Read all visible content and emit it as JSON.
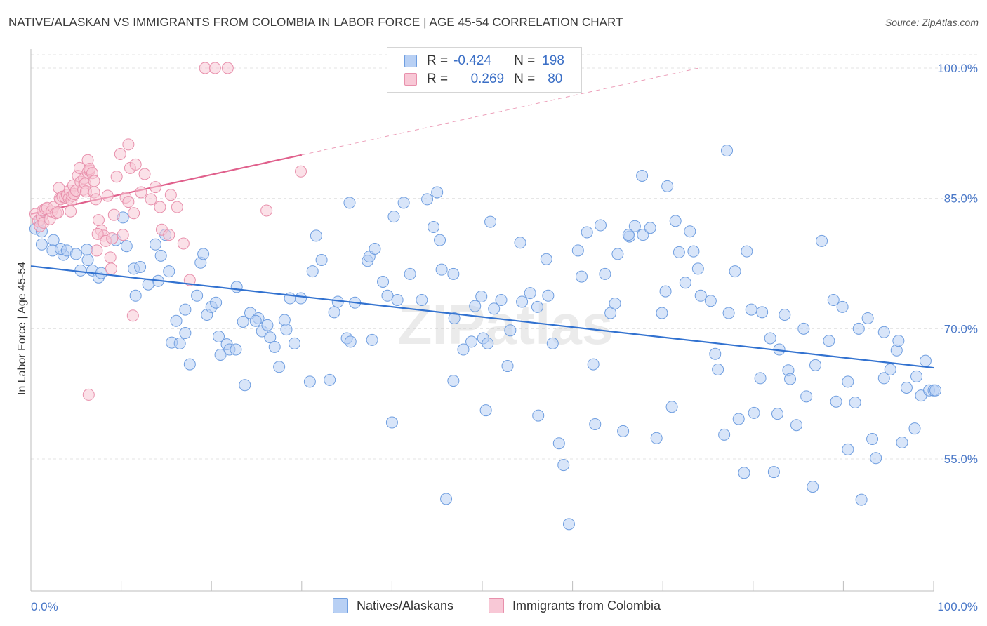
{
  "header": {
    "title": "NATIVE/ALASKAN VS IMMIGRANTS FROM COLOMBIA IN LABOR FORCE | AGE 45-54 CORRELATION CHART",
    "source": "Source: ZipAtlas.com"
  },
  "legend": {
    "r_label": "R =",
    "n_label": "N =",
    "series": [
      {
        "r": "-0.424",
        "n": "198"
      },
      {
        "r": "0.269",
        "n": "80"
      }
    ]
  },
  "bottom_legend": [
    "Natives/Alaskans",
    "Immigrants from Colombia"
  ],
  "watermark": "ZIPatlas",
  "colors": {
    "blue_fill": "#b8d0f4",
    "blue_stroke": "#6f9ee0",
    "blue_line": "#3272d0",
    "pink_fill": "#f8c8d6",
    "pink_stroke": "#e890ac",
    "pink_line": "#e0608c",
    "tick_text": "#4a78c8",
    "grid": "#e3e3e3"
  },
  "chart_data": {
    "type": "scatter",
    "title": "NATIVE/ALASKAN VS IMMIGRANTS FROM COLOMBIA IN LABOR FORCE | AGE 45-54 CORRELATION CHART",
    "xlabel": "",
    "ylabel": "In Labor Force | Age 45-54",
    "xlim": [
      0,
      100
    ],
    "ylim": [
      40,
      102
    ],
    "x_tick_labels": [
      "0.0%",
      "100.0%"
    ],
    "y_ticks": [
      55,
      70,
      85,
      100
    ],
    "y_tick_labels": [
      "55.0%",
      "70.0%",
      "85.0%",
      "100.0%"
    ],
    "grid": true,
    "legend_position": "top-center",
    "series": [
      {
        "name": "Natives/Alaskans",
        "r": -0.424,
        "n": 198,
        "trend": {
          "x": [
            0,
            100
          ],
          "y": [
            77.2,
            65.5
          ],
          "style": "solid"
        },
        "points": [
          [
            0.5,
            81.5
          ],
          [
            1.2,
            81.2
          ],
          [
            1,
            82.5
          ],
          [
            2.5,
            80.2
          ],
          [
            1.2,
            79.7
          ],
          [
            2.4,
            79
          ],
          [
            3.6,
            78.5
          ],
          [
            3.3,
            79.2
          ],
          [
            4,
            79
          ],
          [
            5,
            78.6
          ],
          [
            6.3,
            77.9
          ],
          [
            6.2,
            79.1
          ],
          [
            5.5,
            76.7
          ],
          [
            6.8,
            76.7
          ],
          [
            7.5,
            75.9
          ],
          [
            7.8,
            76.4
          ],
          [
            10.2,
            82.8
          ],
          [
            9.4,
            80.2
          ],
          [
            11.4,
            76.9
          ],
          [
            10.6,
            79.5
          ],
          [
            12.1,
            77.1
          ],
          [
            11.6,
            73.8
          ],
          [
            14.1,
            75.5
          ],
          [
            13,
            75.1
          ],
          [
            14.4,
            78.4
          ],
          [
            14.9,
            80.8
          ],
          [
            13.8,
            79.7
          ],
          [
            15.3,
            76.6
          ],
          [
            16.1,
            70.9
          ],
          [
            17.1,
            72.2
          ],
          [
            17.6,
            65.9
          ],
          [
            15.6,
            68.4
          ],
          [
            16.5,
            68.3
          ],
          [
            17.1,
            69.5
          ],
          [
            18.8,
            77.6
          ],
          [
            19.1,
            78.6
          ],
          [
            18.4,
            73.8
          ],
          [
            19.5,
            71.6
          ],
          [
            20,
            72.5
          ],
          [
            20.5,
            73
          ],
          [
            21,
            67.0
          ],
          [
            20.8,
            69.1
          ],
          [
            21.7,
            68.2
          ],
          [
            22.0,
            67.6
          ],
          [
            22.7,
            67.6
          ],
          [
            23.5,
            70.8
          ],
          [
            22.8,
            74.8
          ],
          [
            23.7,
            63.5
          ],
          [
            24.3,
            71.8
          ],
          [
            25.2,
            71.2
          ],
          [
            24.9,
            70.9
          ],
          [
            25.6,
            69.7
          ],
          [
            26.2,
            70.4
          ],
          [
            26.5,
            69.0
          ],
          [
            27.0,
            67.9
          ],
          [
            27.5,
            65.6
          ],
          [
            28.1,
            71.0
          ],
          [
            28.3,
            69.9
          ],
          [
            29.2,
            68.3
          ],
          [
            28.7,
            73.5
          ],
          [
            29.9,
            73.5
          ],
          [
            30.9,
            63.9
          ],
          [
            31.6,
            80.7
          ],
          [
            32.2,
            77.9
          ],
          [
            31.2,
            76.6
          ],
          [
            33.1,
            64.1
          ],
          [
            33.6,
            71.9
          ],
          [
            34.0,
            73.1
          ],
          [
            35.0,
            68.9
          ],
          [
            35.4,
            68.5
          ],
          [
            35.3,
            84.5
          ],
          [
            35.9,
            73
          ],
          [
            37.3,
            77.8
          ],
          [
            37.5,
            78.3
          ],
          [
            38.1,
            79.2
          ],
          [
            37.8,
            68.7
          ],
          [
            39.0,
            75.4
          ],
          [
            39.5,
            73.8
          ],
          [
            40.2,
            82.9
          ],
          [
            40.0,
            59.2
          ],
          [
            40.6,
            73.3
          ],
          [
            41.3,
            84.5
          ],
          [
            42.0,
            76.3
          ],
          [
            43.3,
            73.3
          ],
          [
            43.9,
            84.9
          ],
          [
            44.6,
            81.7
          ],
          [
            45.0,
            85.7
          ],
          [
            45.3,
            80.2
          ],
          [
            45.5,
            76.8
          ],
          [
            46.0,
            50.4
          ],
          [
            46.8,
            76.3
          ],
          [
            46.8,
            64.0
          ],
          [
            46.9,
            71.2
          ],
          [
            47.9,
            67.6
          ],
          [
            48.8,
            68.5
          ],
          [
            49.2,
            72.6
          ],
          [
            49.9,
            73.7
          ],
          [
            50.1,
            68.9
          ],
          [
            50.4,
            60.6
          ],
          [
            50.9,
            82.3
          ],
          [
            50.6,
            68.3
          ],
          [
            51.3,
            72.3
          ],
          [
            52.1,
            73.3
          ],
          [
            52.8,
            65.7
          ],
          [
            53.1,
            69.8
          ],
          [
            54.2,
            79.9
          ],
          [
            54.4,
            73.1
          ],
          [
            55.3,
            74.1
          ],
          [
            56.1,
            72.5
          ],
          [
            56.2,
            60.0
          ],
          [
            57.3,
            73.8
          ],
          [
            57.1,
            78.0
          ],
          [
            57.8,
            68.3
          ],
          [
            58.5,
            56.8
          ],
          [
            59.0,
            54.3
          ],
          [
            59.6,
            47.5
          ],
          [
            60.6,
            79.0
          ],
          [
            61.0,
            76.0
          ],
          [
            61.6,
            81.1
          ],
          [
            62.3,
            65.9
          ],
          [
            62.5,
            59.0
          ],
          [
            63.1,
            81.9
          ],
          [
            63.6,
            76.3
          ],
          [
            64.2,
            71.8
          ],
          [
            64.7,
            72.9
          ],
          [
            65.0,
            78.6
          ],
          [
            65.6,
            58.2
          ],
          [
            66.3,
            80.6
          ],
          [
            66.9,
            81.8
          ],
          [
            67.7,
            87.6
          ],
          [
            67.8,
            80.8
          ],
          [
            68.6,
            81.6
          ],
          [
            69.3,
            57.4
          ],
          [
            69.9,
            71.8
          ],
          [
            70.3,
            74.3
          ],
          [
            70.5,
            86.4
          ],
          [
            71.0,
            61.0
          ],
          [
            71.4,
            82.4
          ],
          [
            71.8,
            78.8
          ],
          [
            72.5,
            75.3
          ],
          [
            73.0,
            81.2
          ],
          [
            73.4,
            78.9
          ],
          [
            73.9,
            76.9
          ],
          [
            74.2,
            73.8
          ],
          [
            75.3,
            73.2
          ],
          [
            76.1,
            65.3
          ],
          [
            75.8,
            67.1
          ],
          [
            76.8,
            57.8
          ],
          [
            77.3,
            71.8
          ],
          [
            78.0,
            76.6
          ],
          [
            78.4,
            59.6
          ],
          [
            79.3,
            78.9
          ],
          [
            79.0,
            53.4
          ],
          [
            79.8,
            72.2
          ],
          [
            80.1,
            60.3
          ],
          [
            80.8,
            64.3
          ],
          [
            81.0,
            71.9
          ],
          [
            81.9,
            68.9
          ],
          [
            82.3,
            53.5
          ],
          [
            82.7,
            60.2
          ],
          [
            82.9,
            67.6
          ],
          [
            83.5,
            71.6
          ],
          [
            83.9,
            65.2
          ],
          [
            84.1,
            64.2
          ],
          [
            84.8,
            58.9
          ],
          [
            85.6,
            70.0
          ],
          [
            85.9,
            62.2
          ],
          [
            86.6,
            51.8
          ],
          [
            86.9,
            65.8
          ],
          [
            87.6,
            80.1
          ],
          [
            88.4,
            68.6
          ],
          [
            88.9,
            73.3
          ],
          [
            89.2,
            61.6
          ],
          [
            89.9,
            72.5
          ],
          [
            90.5,
            63.9
          ],
          [
            90.5,
            56.1
          ],
          [
            91.3,
            61.5
          ],
          [
            91.7,
            70.0
          ],
          [
            92.0,
            50.3
          ],
          [
            92.7,
            71.2
          ],
          [
            93.2,
            57.3
          ],
          [
            93.6,
            55.1
          ],
          [
            94.5,
            69.6
          ],
          [
            94.5,
            64.3
          ],
          [
            95.2,
            65.3
          ],
          [
            95.9,
            67.5
          ],
          [
            96.1,
            68.6
          ],
          [
            96.5,
            56.9
          ],
          [
            97.0,
            63.2
          ],
          [
            97.9,
            58.5
          ],
          [
            98.1,
            64.5
          ],
          [
            98.6,
            62.3
          ],
          [
            99.1,
            66.3
          ],
          [
            99.5,
            62.9
          ],
          [
            100.0,
            62.9
          ],
          [
            77.1,
            90.5
          ],
          [
            100.2,
            62.9
          ],
          [
            66.2,
            80.8
          ]
        ]
      },
      {
        "name": "Immigrants from Colombia",
        "r": 0.269,
        "n": 80,
        "trend": {
          "x": [
            0,
            30
          ],
          "y": [
            83.2,
            90.0
          ],
          "style": "solid"
        },
        "trend_extension": {
          "x": [
            30,
            74
          ],
          "y": [
            90.0,
            100
          ],
          "style": "dashed"
        },
        "points": [
          [
            0.5,
            83.2
          ],
          [
            0.8,
            82.4
          ],
          [
            1,
            81.8
          ],
          [
            1.2,
            82.9
          ],
          [
            1.3,
            83.6
          ],
          [
            1.4,
            82.2
          ],
          [
            1.6,
            83.8
          ],
          [
            1.8,
            83.9
          ],
          [
            2.1,
            82.6
          ],
          [
            2.3,
            83.5
          ],
          [
            2.5,
            84.0
          ],
          [
            2.8,
            83.3
          ],
          [
            3.0,
            83.4
          ],
          [
            3.1,
            86.2
          ],
          [
            3.2,
            85.0
          ],
          [
            3.3,
            84.9
          ],
          [
            3.5,
            85.2
          ],
          [
            3.8,
            85.1
          ],
          [
            4,
            85.4
          ],
          [
            4.2,
            85.0
          ],
          [
            4.3,
            85.9
          ],
          [
            4.4,
            83.5
          ],
          [
            4.5,
            84.8
          ],
          [
            4.6,
            85.3
          ],
          [
            4.7,
            86.5
          ],
          [
            4.8,
            85.5
          ],
          [
            5.0,
            85.9
          ],
          [
            5.2,
            87.6
          ],
          [
            5.4,
            88.5
          ],
          [
            5.5,
            86.9
          ],
          [
            5.8,
            86.0
          ],
          [
            5.9,
            87.3
          ],
          [
            6.0,
            86.7
          ],
          [
            6.1,
            85.8
          ],
          [
            6.3,
            88.0
          ],
          [
            6.5,
            88.2
          ],
          [
            6.3,
            89.4
          ],
          [
            6.5,
            88.4
          ],
          [
            6.8,
            87.9
          ],
          [
            7.0,
            85.7
          ],
          [
            7.2,
            84.9
          ],
          [
            7.5,
            82.5
          ],
          [
            7.8,
            81.3
          ],
          [
            8.1,
            80.7
          ],
          [
            7.4,
            80.9
          ],
          [
            7.3,
            79.0
          ],
          [
            8.3,
            80.1
          ],
          [
            8.8,
            78.2
          ],
          [
            8.9,
            76.9
          ],
          [
            7.0,
            87.0
          ],
          [
            9.0,
            80.4
          ],
          [
            8.5,
            85.3
          ],
          [
            9.2,
            83.1
          ],
          [
            9.5,
            87.5
          ],
          [
            9.9,
            90.1
          ],
          [
            10.5,
            85.1
          ],
          [
            10.8,
            84.6
          ],
          [
            10.2,
            80.8
          ],
          [
            11.0,
            88.5
          ],
          [
            10.8,
            91.2
          ],
          [
            11.4,
            83.3
          ],
          [
            11.6,
            88.9
          ],
          [
            11.3,
            71.5
          ],
          [
            12.2,
            85.7
          ],
          [
            12.6,
            87.8
          ],
          [
            13.3,
            84.9
          ],
          [
            13.8,
            86.3
          ],
          [
            14.3,
            84.0
          ],
          [
            14.5,
            81.4
          ],
          [
            15.3,
            80.8
          ],
          [
            15.5,
            85.4
          ],
          [
            16.2,
            84.0
          ],
          [
            16.9,
            79.8
          ],
          [
            17.6,
            75.6
          ],
          [
            19.3,
            100.0
          ],
          [
            20.4,
            100.0
          ],
          [
            21.8,
            100.0
          ],
          [
            26.1,
            83.6
          ],
          [
            29.9,
            88.1
          ],
          [
            6.4,
            62.4
          ]
        ]
      }
    ]
  }
}
